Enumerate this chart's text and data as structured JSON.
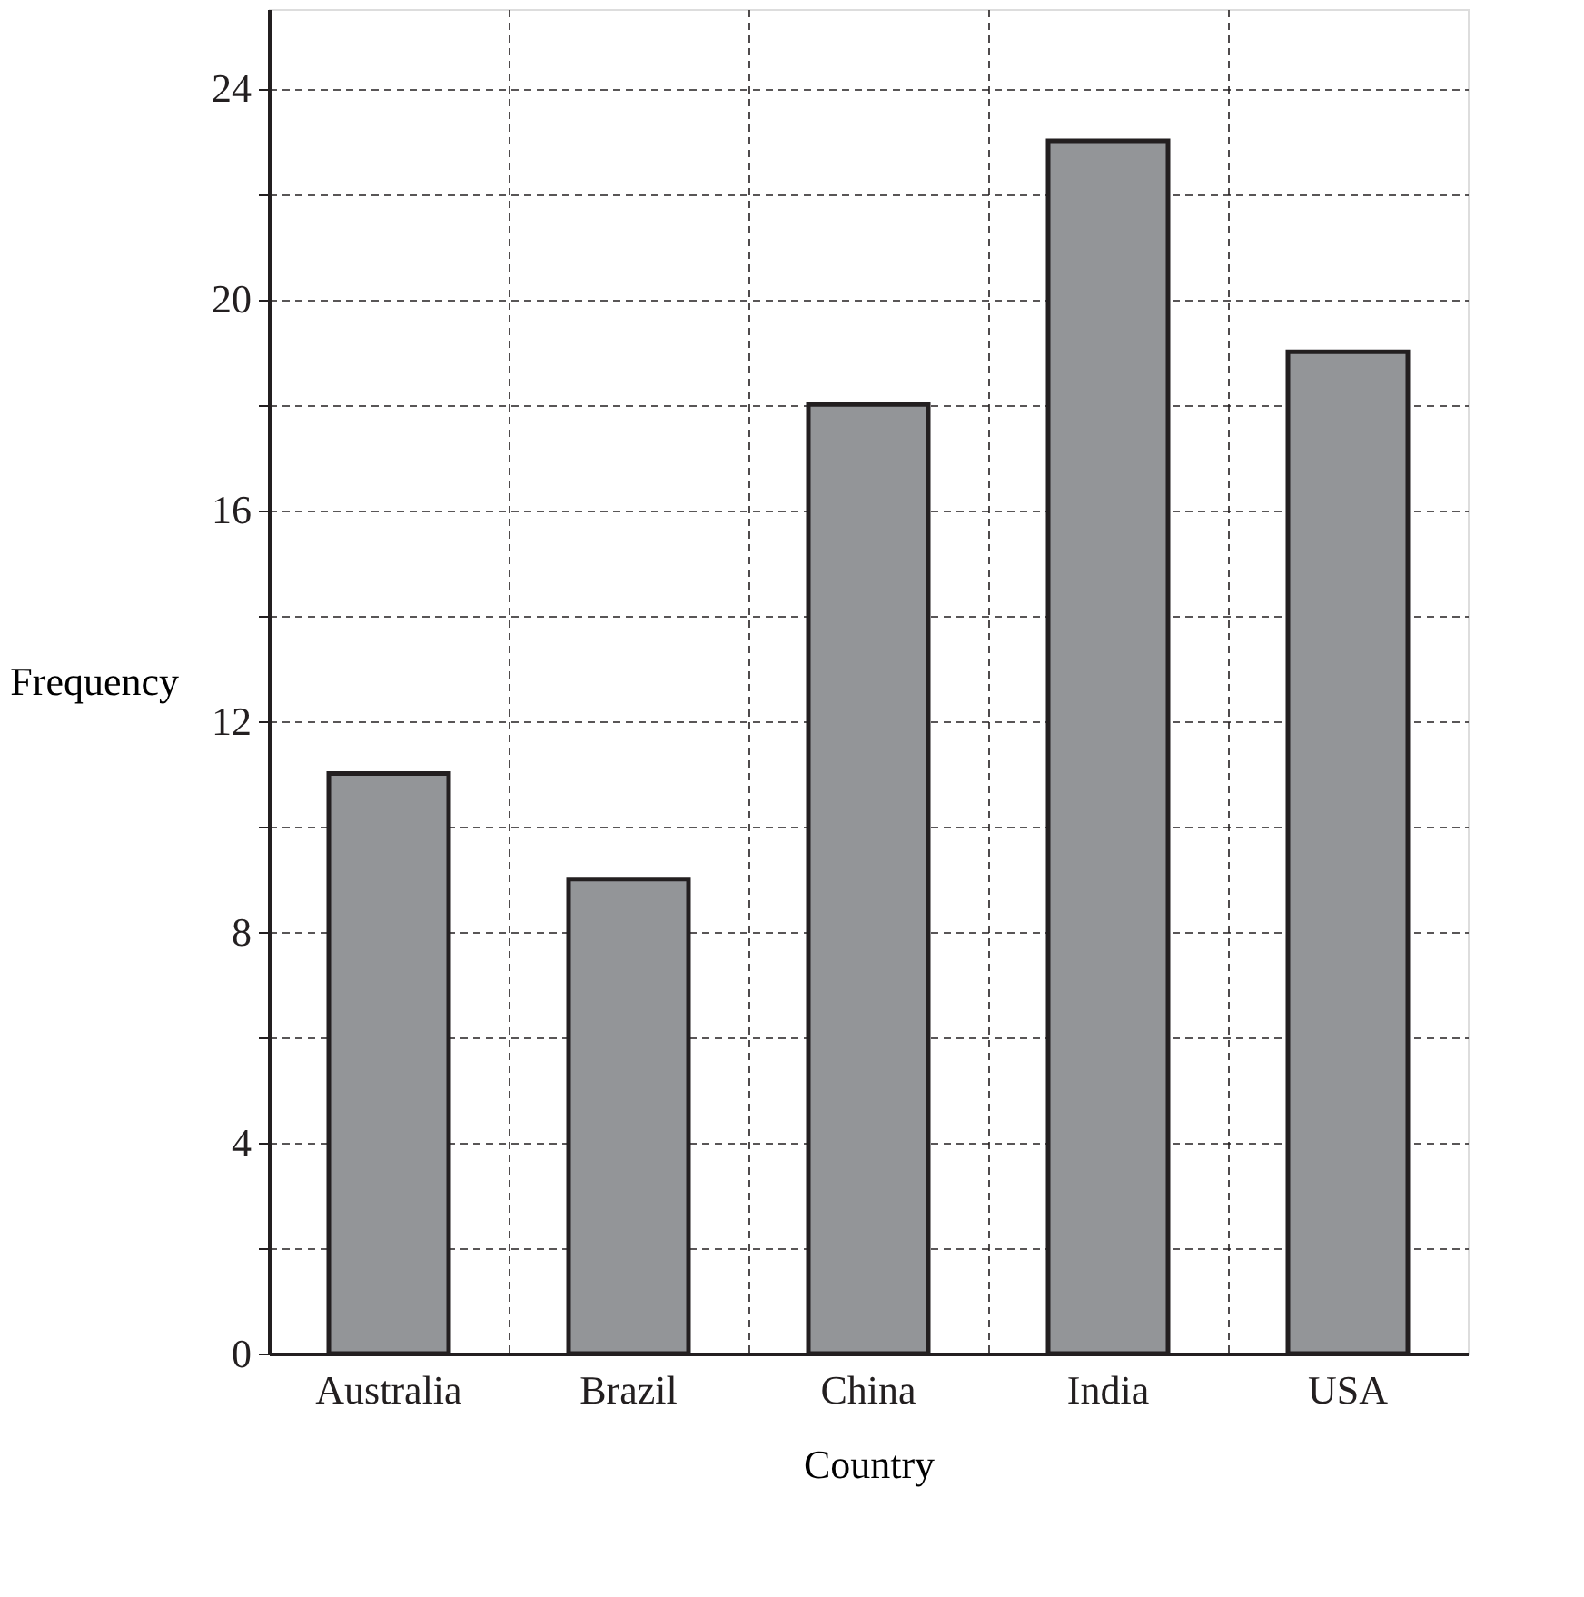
{
  "chart_data": {
    "type": "bar",
    "xlabel": "Country",
    "ylabel": "Frequency",
    "categories": [
      "Australia",
      "Brazil",
      "China",
      "India",
      "USA"
    ],
    "values": [
      11,
      9,
      18,
      23,
      19
    ],
    "color": "#939598",
    "ylim": [
      0,
      25.5
    ],
    "yticks": [
      0,
      {
        "value": 2,
        "label": null
      },
      4,
      {
        "value": 6,
        "label": null
      },
      8,
      {
        "value": 10,
        "label": null
      },
      12,
      {
        "value": 14,
        "label": null
      },
      16,
      {
        "value": 18,
        "label": null
      },
      20,
      {
        "value": 22,
        "label": null
      },
      24
    ],
    "grid": true
  }
}
